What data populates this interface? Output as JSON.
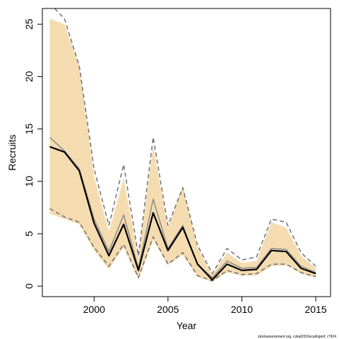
{
  "chart_data": {
    "type": "line",
    "title": "",
    "xlabel": "Year",
    "ylabel": "Recruits",
    "xlim": [
      1996.5,
      2016.0
    ],
    "ylim": [
      -1.0,
      26.5
    ],
    "x_ticks": [
      2000,
      2005,
      2010,
      2015
    ],
    "y_ticks": [
      0,
      5,
      10,
      15,
      20,
      25
    ],
    "grid": false,
    "legend": "none",
    "x": [
      1997,
      1998,
      1999,
      2000,
      2001,
      2002,
      2003,
      2004,
      2005,
      2006,
      2007,
      2008,
      2009,
      2010,
      2011,
      2012,
      2013,
      2014,
      2015
    ],
    "series": [
      {
        "role": "band",
        "color": "#f5dcb0",
        "lower": [
          6.9,
          6.4,
          5.9,
          3.4,
          1.6,
          3.7,
          0.6,
          4.4,
          2.0,
          3.0,
          0.9,
          0.4,
          1.3,
          1.0,
          1.0,
          1.9,
          2.0,
          1.2,
          0.8
        ],
        "upper": [
          25.5,
          25.0,
          21.0,
          10.5,
          5.2,
          10.3,
          2.7,
          13.4,
          5.5,
          9.6,
          3.7,
          1.1,
          3.2,
          2.2,
          2.4,
          6.1,
          5.6,
          2.9,
          1.7
        ]
      },
      {
        "role": "lower-bound",
        "color": "#707070",
        "values": [
          7.4,
          6.6,
          6.1,
          3.7,
          1.9,
          4.0,
          0.8,
          4.7,
          2.1,
          3.2,
          1.0,
          0.5,
          1.5,
          1.1,
          1.2,
          2.1,
          2.1,
          1.3,
          0.9
        ]
      },
      {
        "role": "upper-bound",
        "color": "#707070",
        "values": [
          27.0,
          25.5,
          21.0,
          11.2,
          5.8,
          11.6,
          2.9,
          14.2,
          5.8,
          9.4,
          3.9,
          1.2,
          3.6,
          2.5,
          2.8,
          6.4,
          6.1,
          3.2,
          1.9
        ]
      },
      {
        "role": "alternate",
        "color": "#8a8a8a",
        "values": [
          14.2,
          12.9,
          11.2,
          6.4,
          3.3,
          6.8,
          1.7,
          8.3,
          3.6,
          5.8,
          2.1,
          0.8,
          2.4,
          1.7,
          1.8,
          3.6,
          3.5,
          1.9,
          1.3
        ]
      },
      {
        "role": "estimate",
        "color": "#000000",
        "values": [
          13.3,
          12.8,
          11.0,
          6.0,
          2.9,
          5.9,
          1.5,
          7.0,
          3.4,
          5.6,
          2.1,
          0.6,
          2.1,
          1.5,
          1.6,
          3.4,
          3.3,
          1.7,
          1.2
        ]
      }
    ]
  },
  "credit": "stockassessment.org, cokat2016scalingonf, r7924"
}
